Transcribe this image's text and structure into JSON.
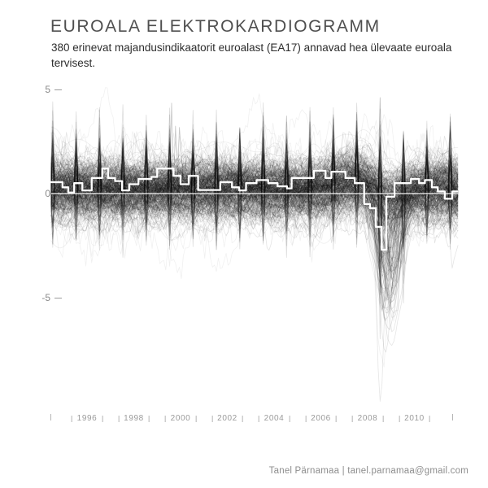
{
  "header": {
    "title": "EUROALA ELEKTROKARDIOGRAMM",
    "subtitle": "380 erinevat majandusindikaatorit euroalast (EA17) annavad hea ülevaate euroala tervisest."
  },
  "yaxis": {
    "ticks": [
      {
        "label": "5",
        "value": 5
      },
      {
        "label": "0",
        "value": 0
      },
      {
        "label": "-5",
        "value": -5
      }
    ]
  },
  "xaxis": {
    "year_labels": [
      "1996",
      "1998",
      "2000",
      "2002",
      "2004",
      "2006",
      "2008",
      "2010"
    ]
  },
  "footer": {
    "credit": "Tanel Pärnamaa | tanel.parnamaa@gmail.com"
  },
  "colors": {
    "background": "#ffffff",
    "indicator_lines": "#000000",
    "median_line": "#ffffff",
    "axis_text": "#9a9a9a",
    "title_text": "#4f4f4f"
  },
  "chart_data": {
    "type": "line",
    "title": "EUROALA ELEKTROKARDIOGRAMM",
    "subtitle": "380 erinevat majandusindikaatorit euroalast (EA17) annavad hea ülevaate euroala tervisest.",
    "background_series_count": 380,
    "background_series_style": "380 thin semi-transparent black standardized indicator lines forming an ECG-like band around 0 with yearly spike needles, tall faint spikes near 1999-2000 (to ~+4), and a deep 2008-2009 crash with lines plunging to ~-10",
    "x_range": [
      1994.45,
      2011.86
    ],
    "ylim": [
      -10.5,
      5.5
    ],
    "y_ticks": [
      5,
      0,
      -5
    ],
    "x_tick_years": [
      1996,
      1998,
      2000,
      2002,
      2004,
      2006,
      2008,
      2010
    ],
    "grid": false,
    "zero_line": {
      "color": "#ffffff",
      "y": 0
    },
    "median_series": {
      "name": "median (white step line)",
      "style": "step",
      "points": [
        [
          1994.45,
          0.55
        ],
        [
          1994.95,
          0.3
        ],
        [
          1995.2,
          0.05
        ],
        [
          1995.45,
          0.5
        ],
        [
          1995.8,
          0.15
        ],
        [
          1996.2,
          0.75
        ],
        [
          1996.65,
          1.2
        ],
        [
          1996.9,
          0.75
        ],
        [
          1997.2,
          0.6
        ],
        [
          1997.5,
          0.15
        ],
        [
          1997.8,
          0.45
        ],
        [
          1998.2,
          0.7
        ],
        [
          1998.75,
          0.8
        ],
        [
          1999.0,
          1.2
        ],
        [
          1999.7,
          0.85
        ],
        [
          2000.0,
          0.45
        ],
        [
          2000.35,
          0.85
        ],
        [
          2000.75,
          0.17
        ],
        [
          2001.7,
          0.55
        ],
        [
          2002.2,
          0.3
        ],
        [
          2002.5,
          0.15
        ],
        [
          2002.8,
          0.5
        ],
        [
          2003.25,
          0.65
        ],
        [
          2003.75,
          0.5
        ],
        [
          2004.15,
          0.35
        ],
        [
          2004.55,
          0.25
        ],
        [
          2004.75,
          0.75
        ],
        [
          2005.7,
          1.1
        ],
        [
          2006.2,
          0.75
        ],
        [
          2006.45,
          1.05
        ],
        [
          2007.05,
          0.75
        ],
        [
          2007.45,
          0.5
        ],
        [
          2007.85,
          -0.5
        ],
        [
          2008.1,
          -0.7
        ],
        [
          2008.35,
          -1.6
        ],
        [
          2008.6,
          -2.7
        ],
        [
          2008.8,
          -0.15
        ],
        [
          2009.15,
          0.5
        ],
        [
          2009.85,
          0.7
        ],
        [
          2010.2,
          0.5
        ],
        [
          2010.45,
          0.65
        ],
        [
          2010.75,
          0.3
        ],
        [
          2011.0,
          0.1
        ],
        [
          2011.3,
          -0.25
        ],
        [
          2011.62,
          0.1
        ],
        [
          2011.86,
          0.1
        ]
      ]
    }
  }
}
